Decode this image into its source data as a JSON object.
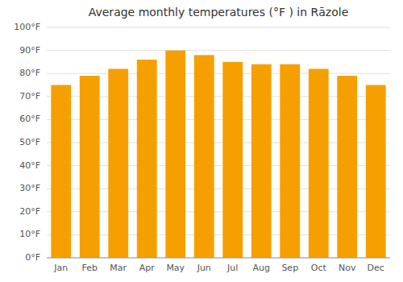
{
  "chart_data": {
    "type": "bar",
    "title": "Average monthly temperatures (°F ) in Rāzole",
    "categories": [
      "Jan",
      "Feb",
      "Mar",
      "Apr",
      "May",
      "Jun",
      "Jul",
      "Aug",
      "Sep",
      "Oct",
      "Nov",
      "Dec"
    ],
    "values": [
      75,
      79,
      82,
      86,
      90,
      88,
      85,
      84,
      84,
      82,
      79,
      75
    ],
    "color": "#F5A000",
    "ylim": [
      0,
      100
    ],
    "yticks": [
      {
        "value": 0,
        "label": "0°F"
      },
      {
        "value": 10,
        "label": "10°F"
      },
      {
        "value": 20,
        "label": "20°F"
      },
      {
        "value": 30,
        "label": "30°F"
      },
      {
        "value": 40,
        "label": "40°F"
      },
      {
        "value": 50,
        "label": "50°F"
      },
      {
        "value": 60,
        "label": "60°F"
      },
      {
        "value": 70,
        "label": "70°F"
      },
      {
        "value": 80,
        "label": "80°F"
      },
      {
        "value": 90,
        "label": "90°F"
      },
      {
        "value": 100,
        "label": "100°F"
      }
    ],
    "grid": true
  }
}
